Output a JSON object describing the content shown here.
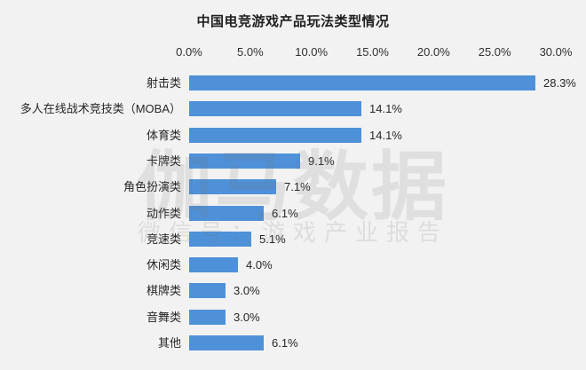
{
  "page": {
    "background": "#f2f2f2"
  },
  "chart": {
    "title": "中国电竞游戏产品玩法类型情况",
    "watermark": {
      "line1": "伽马数据",
      "line2": "微信号：游戏产业报告"
    },
    "colors": {
      "bar": "#4f91d8",
      "text": "#262626",
      "title": "#1f1f1f",
      "background": "#f2f2f2"
    }
  },
  "chart_data": {
    "type": "bar",
    "orientation": "horizontal",
    "title": "中国电竞游戏产品玩法类型情况",
    "categories": [
      "射击类",
      "多人在线战术竞技类（MOBA）",
      "体育类",
      "卡牌类",
      "角色扮演类",
      "动作类",
      "竞速类",
      "休闲类",
      "棋牌类",
      "音舞类",
      "其他"
    ],
    "values": [
      28.3,
      14.1,
      14.1,
      9.1,
      7.1,
      6.1,
      5.1,
      4.0,
      3.0,
      3.0,
      6.1
    ],
    "value_labels": [
      "28.3%",
      "14.1%",
      "14.1%",
      "9.1%",
      "7.1%",
      "6.1%",
      "5.1%",
      "4.0%",
      "3.0%",
      "3.0%",
      "6.1%"
    ],
    "x_ticks": [
      "0.0%",
      "5.0%",
      "10.0%",
      "15.0%",
      "20.0%",
      "25.0%",
      "30.0%"
    ],
    "x_tick_values": [
      0,
      5,
      10,
      15,
      20,
      25,
      30
    ],
    "xlabel": "",
    "ylabel": "",
    "xlim": [
      0,
      30
    ],
    "grid": false,
    "legend": null,
    "axis_position": "top"
  }
}
